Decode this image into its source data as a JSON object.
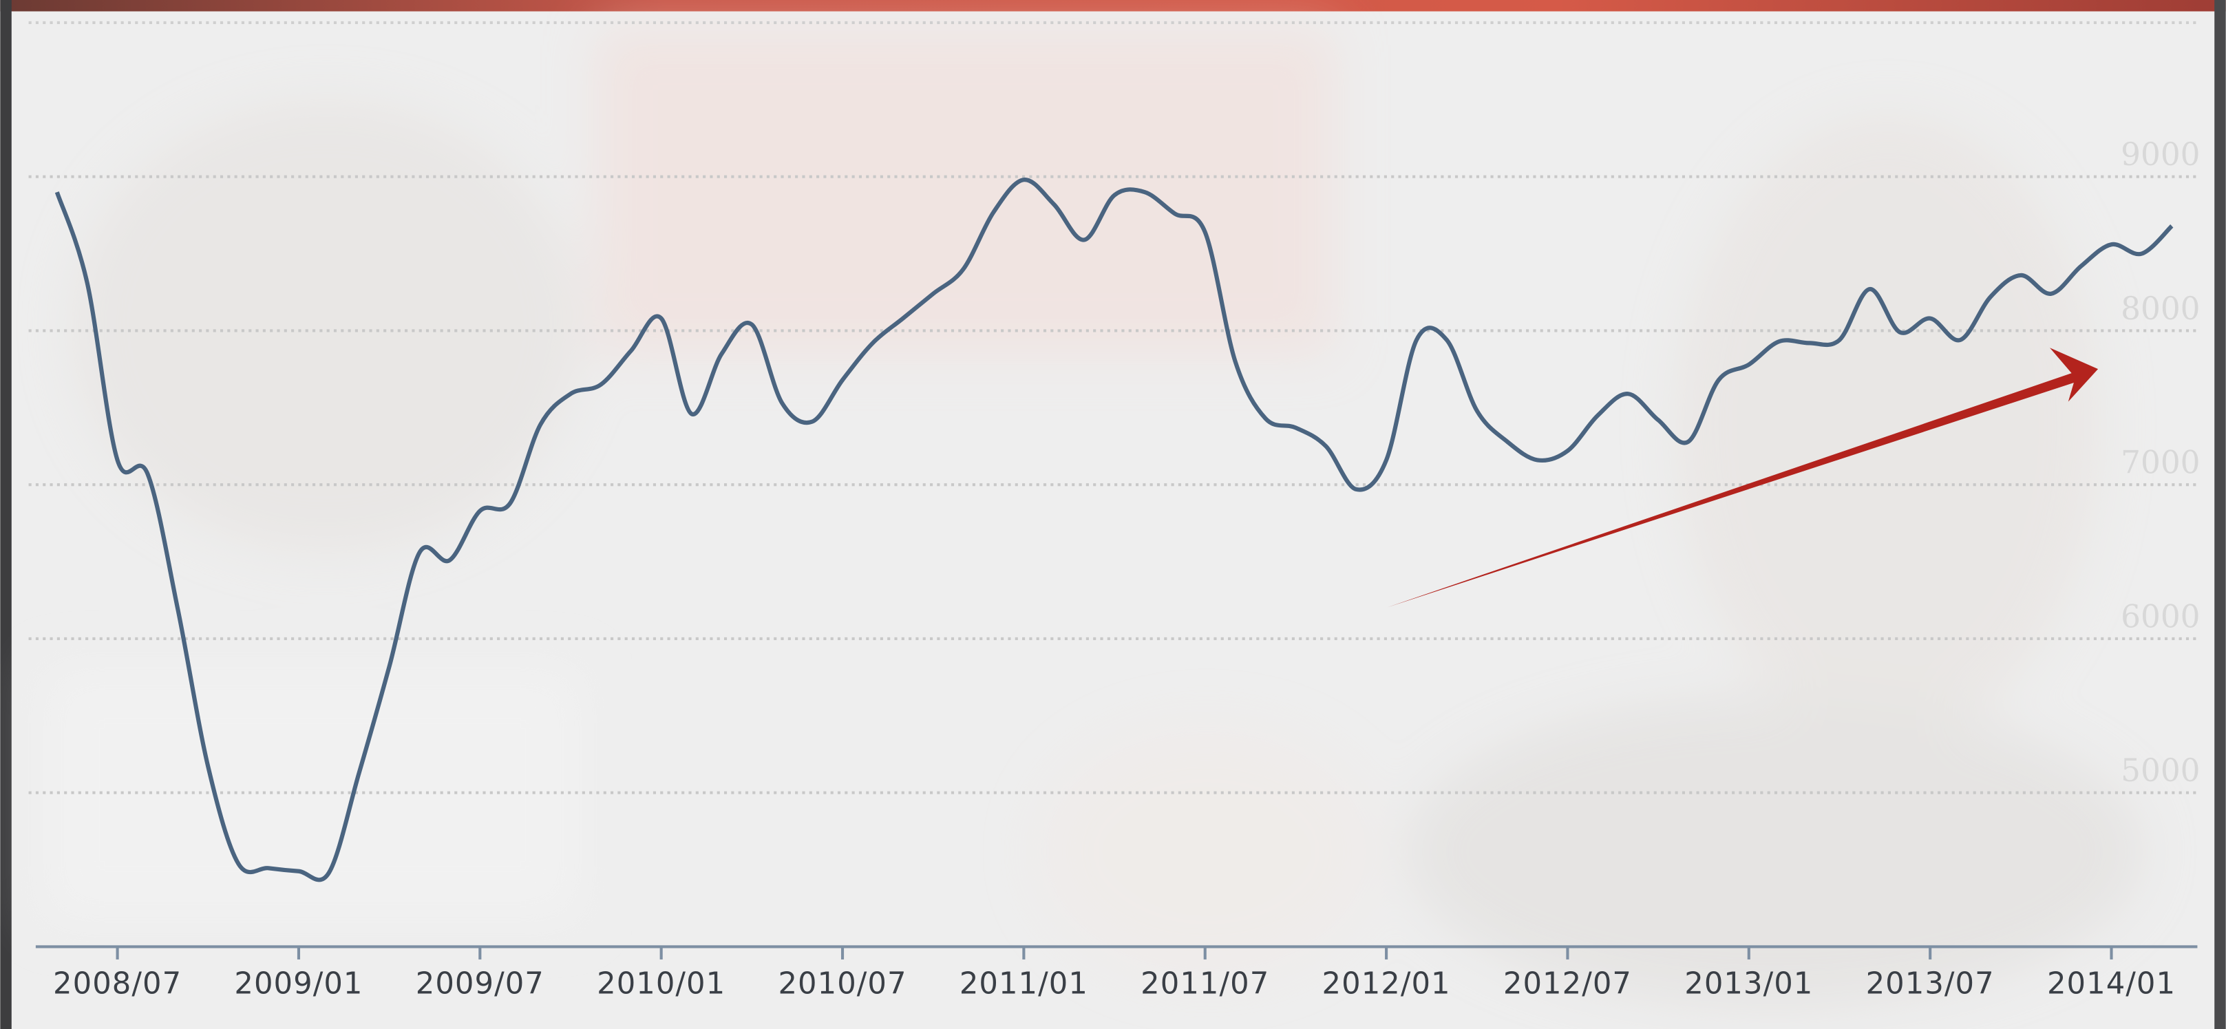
{
  "chart_data": {
    "type": "line",
    "categories": [
      null,
      null,
      "2008/07",
      null,
      null,
      null,
      null,
      null,
      "2009/01",
      null,
      null,
      null,
      null,
      null,
      "2009/07",
      null,
      null,
      null,
      null,
      null,
      "2010/01",
      null,
      null,
      null,
      null,
      null,
      "2010/07",
      null,
      null,
      null,
      null,
      null,
      "2011/01",
      null,
      null,
      null,
      null,
      null,
      "2011/07",
      null,
      null,
      null,
      null,
      null,
      "2012/01",
      null,
      null,
      null,
      null,
      null,
      "2012/07",
      null,
      null,
      null,
      null,
      null,
      "2013/01",
      null,
      null,
      null,
      null,
      null,
      "2013/07",
      null,
      null,
      null,
      null,
      null,
      "2014/01",
      null,
      null
    ],
    "values": [
      8900,
      8310,
      7160,
      7070,
      6190,
      5170,
      4540,
      4510,
      4490,
      4480,
      5130,
      5820,
      6560,
      6510,
      6830,
      6880,
      7390,
      7590,
      7650,
      7870,
      8080,
      7460,
      7850,
      8040,
      7530,
      7410,
      7680,
      7920,
      8080,
      8240,
      8400,
      8770,
      8980,
      8820,
      8590,
      8880,
      8900,
      8760,
      8640,
      7800,
      7430,
      7370,
      7250,
      6970,
      7160,
      7940,
      7940,
      7480,
      7280,
      7160,
      7220,
      7450,
      7590,
      7420,
      7280,
      7680,
      7780,
      7930,
      7920,
      7940,
      8270,
      7990,
      8080,
      7940,
      8220,
      8360,
      8240,
      8420,
      8560,
      8500,
      8680
    ],
    "color": "#4a6480",
    "ylim": [
      4000,
      10000
    ],
    "yticks": [
      5000,
      6000,
      7000,
      8000,
      9000
    ],
    "grid": true
  }
}
